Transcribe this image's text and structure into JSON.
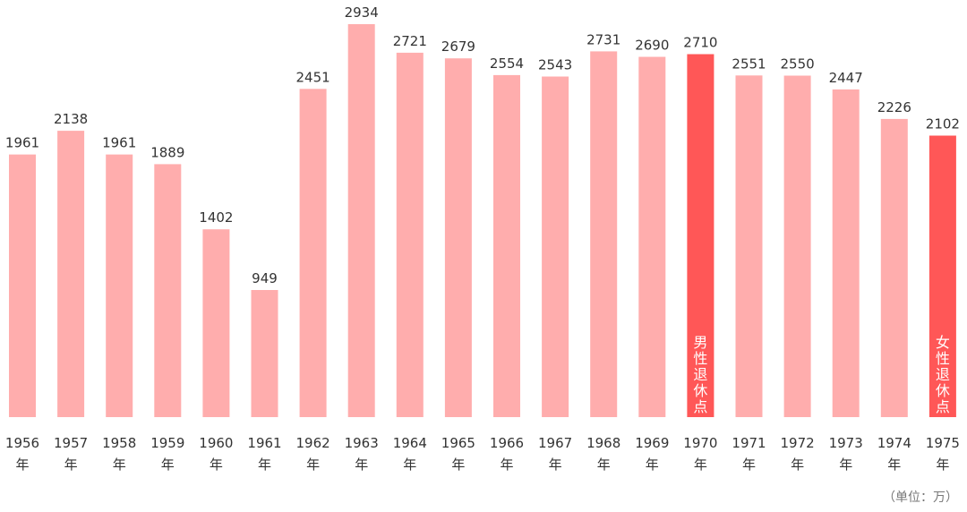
{
  "chart_data": {
    "type": "bar",
    "categories": [
      "1956",
      "1957",
      "1958",
      "1959",
      "1960",
      "1961",
      "1962",
      "1963",
      "1964",
      "1965",
      "1966",
      "1967",
      "1968",
      "1969",
      "1970",
      "1971",
      "1972",
      "1973",
      "1974",
      "1975"
    ],
    "category_suffix": "年",
    "values": [
      1961,
      2138,
      1961,
      1889,
      1402,
      949,
      2451,
      2934,
      2721,
      2679,
      2554,
      2543,
      2731,
      2690,
      2710,
      2551,
      2550,
      2447,
      2226,
      2102
    ],
    "unit_note": "（单位：万）",
    "ylim": [
      0,
      2934
    ],
    "grid": false,
    "colors": {
      "default": "#FFADAD",
      "highlight": "#FF5757"
    },
    "highlights": [
      {
        "category": "1970",
        "label": "男性退休点"
      },
      {
        "category": "1975",
        "label": "女性退休点"
      }
    ]
  }
}
